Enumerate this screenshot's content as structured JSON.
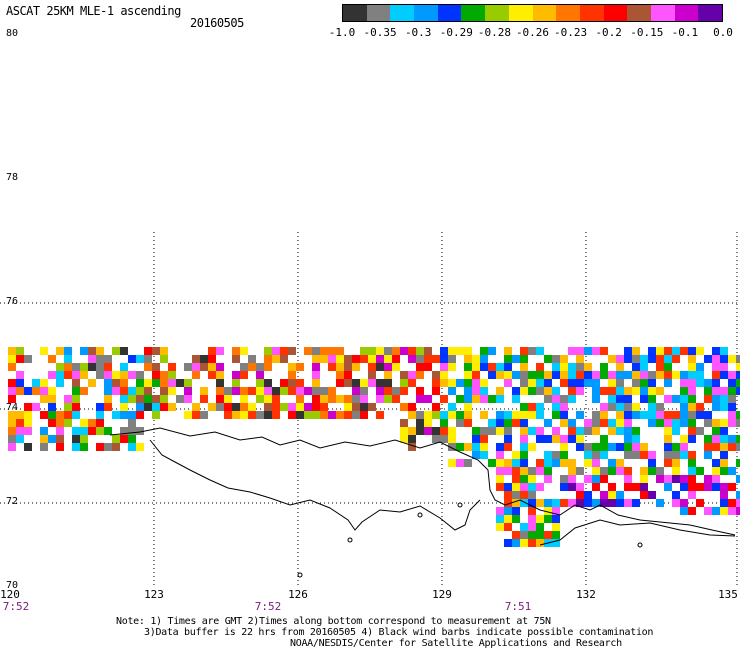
{
  "header": {
    "title": "ASCAT 25KM MLE-1 ascending",
    "date": "20160505"
  },
  "colorbar": {
    "colors": [
      "#333333",
      "#808080",
      "#00ccff",
      "#0099ff",
      "#0033ff",
      "#00aa00",
      "#99cc00",
      "#ffee00",
      "#ffbb00",
      "#ff7700",
      "#ff3300",
      "#ff0000",
      "#aa5533",
      "#ff55ff",
      "#cc00cc",
      "#6600aa"
    ],
    "tick_labels": [
      "-1.0",
      "-0.35",
      "-0.3",
      "-0.29",
      "-0.28",
      "-0.26",
      "-0.23",
      "-0.2",
      "-0.15",
      "-0.1",
      "0.0"
    ]
  },
  "map": {
    "lat_labels": [
      "80",
      "78",
      "76",
      "74",
      "72",
      "70"
    ],
    "lon_labels": [
      "120",
      "123",
      "126",
      "129",
      "132",
      "135"
    ],
    "time_labels": [
      "7:52",
      "7:52",
      "7:51"
    ],
    "lat_range": [
      70,
      80
    ],
    "lon_range": [
      120,
      135
    ]
  },
  "footer": {
    "note_line1": "Note: 1) Times are GMT 2)Times along bottom correspond to measurement at 75N",
    "note_line2": "3)Data buffer is 22 hrs from 20160505 4) Black wind barbs indicate possible contamination",
    "note_line3": "NOAA/NESDIS/Center for Satellite Applications and Research"
  }
}
